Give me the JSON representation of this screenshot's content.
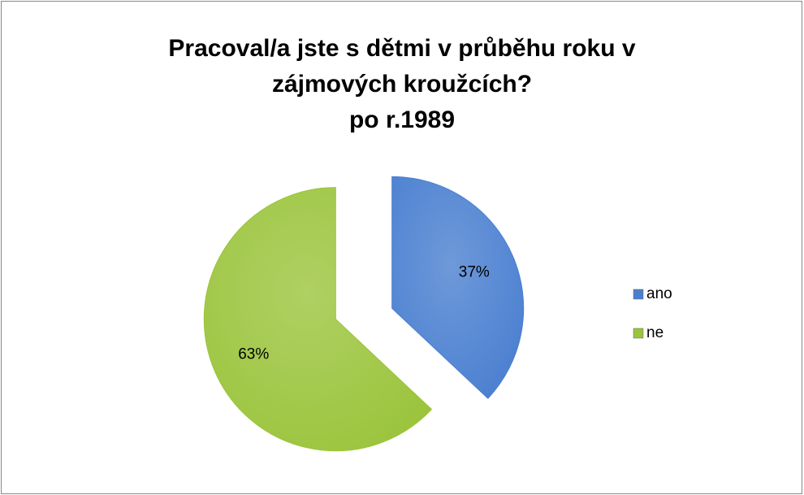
{
  "chart_data": {
    "type": "pie",
    "title": "Pracoval/a jste s dětmi v průběhu roku v zájmových kroužcích?",
    "subtitle": "po r.1989",
    "categories": [
      "ano",
      "ne"
    ],
    "values": [
      37,
      63
    ],
    "value_labels": [
      "37%",
      "63%"
    ],
    "colors": [
      "#4a7fd0",
      "#9bc43c"
    ],
    "legend": "right"
  }
}
